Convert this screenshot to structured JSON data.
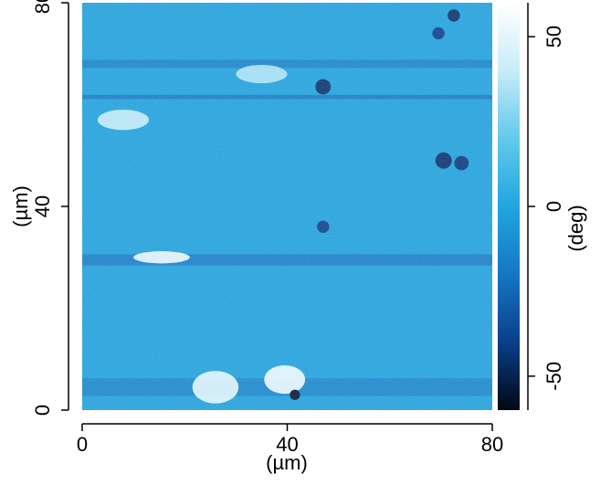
{
  "chart_data": {
    "type": "heatmap",
    "title": "",
    "x_axis": {
      "label": "(µm)",
      "range": [
        0,
        80
      ],
      "ticks": [
        0,
        40,
        80
      ]
    },
    "y_axis": {
      "label": "(µm)",
      "range": [
        0,
        80
      ],
      "ticks": [
        0,
        40,
        80
      ]
    },
    "colorbar": {
      "label": "(deg)",
      "range": [
        -60,
        60
      ],
      "ticks": [
        -50,
        0,
        50
      ],
      "colors": [
        "#020814",
        "#0a3f8a",
        "#1677c4",
        "#20a6df",
        "#62c9ec",
        "#c7ecf8",
        "#ffffff"
      ]
    },
    "image": {
      "background_value": -3,
      "horizontal_bands": [
        {
          "y": 68.0,
          "height": 1.6,
          "value": -18
        },
        {
          "y": 61.5,
          "height": 0.8,
          "value": -22
        },
        {
          "y": 29.5,
          "height": 2.2,
          "value": -20
        },
        {
          "y": 4.5,
          "height": 3.5,
          "value": -16
        }
      ],
      "bright_patches": [
        {
          "x": 15.5,
          "y": 30.0,
          "rx": 5.5,
          "ry": 1.2,
          "value": 55
        },
        {
          "x": 26.0,
          "y": 4.5,
          "rx": 4.5,
          "ry": 3.2,
          "value": 50
        },
        {
          "x": 39.5,
          "y": 6.0,
          "rx": 4.0,
          "ry": 2.8,
          "value": 55
        },
        {
          "x": 8.0,
          "y": 57.0,
          "rx": 5.0,
          "ry": 2.0,
          "value": 40
        },
        {
          "x": 35.0,
          "y": 66.0,
          "rx": 5.0,
          "ry": 1.8,
          "value": 35
        }
      ],
      "dark_spots": [
        {
          "x": 47.0,
          "y": 63.5,
          "r": 1.5,
          "value": -45
        },
        {
          "x": 47.0,
          "y": 36.0,
          "r": 1.2,
          "value": -40
        },
        {
          "x": 70.5,
          "y": 49.0,
          "r": 1.6,
          "value": -45
        },
        {
          "x": 74.0,
          "y": 48.5,
          "r": 1.4,
          "value": -42
        },
        {
          "x": 69.5,
          "y": 74.0,
          "r": 1.2,
          "value": -40
        },
        {
          "x": 72.5,
          "y": 77.5,
          "r": 1.2,
          "value": -45
        },
        {
          "x": 41.5,
          "y": 3.0,
          "r": 1.0,
          "value": -55
        }
      ]
    }
  }
}
